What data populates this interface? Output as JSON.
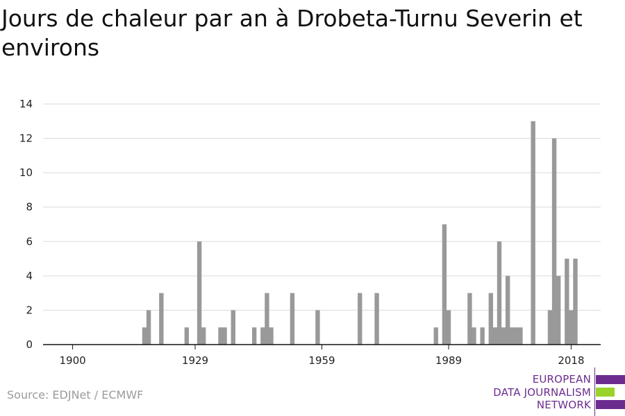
{
  "chart_data": {
    "type": "bar",
    "title": "Jours de chaleur par an à Drobeta-Turnu Severin et environs",
    "xlabel": "",
    "ylabel": "",
    "xlim": [
      1893,
      2025
    ],
    "ylim": [
      0,
      14
    ],
    "y_ticks": [
      0,
      2,
      4,
      6,
      8,
      10,
      12,
      14
    ],
    "x_ticks": [
      1900,
      1929,
      1959,
      1989,
      2018
    ],
    "grid": true,
    "bar_color": "#999999",
    "data": [
      {
        "year": 1917,
        "value": 1
      },
      {
        "year": 1918,
        "value": 2
      },
      {
        "year": 1921,
        "value": 3
      },
      {
        "year": 1927,
        "value": 1
      },
      {
        "year": 1930,
        "value": 6
      },
      {
        "year": 1931,
        "value": 1
      },
      {
        "year": 1935,
        "value": 1
      },
      {
        "year": 1936,
        "value": 1
      },
      {
        "year": 1938,
        "value": 2
      },
      {
        "year": 1943,
        "value": 1
      },
      {
        "year": 1945,
        "value": 1
      },
      {
        "year": 1946,
        "value": 3
      },
      {
        "year": 1947,
        "value": 1
      },
      {
        "year": 1952,
        "value": 3
      },
      {
        "year": 1958,
        "value": 2
      },
      {
        "year": 1968,
        "value": 3
      },
      {
        "year": 1972,
        "value": 3
      },
      {
        "year": 1986,
        "value": 1
      },
      {
        "year": 1988,
        "value": 7
      },
      {
        "year": 1989,
        "value": 2
      },
      {
        "year": 1994,
        "value": 3
      },
      {
        "year": 1995,
        "value": 1
      },
      {
        "year": 1997,
        "value": 1
      },
      {
        "year": 1999,
        "value": 3
      },
      {
        "year": 2000,
        "value": 1
      },
      {
        "year": 2001,
        "value": 6
      },
      {
        "year": 2002,
        "value": 1
      },
      {
        "year": 2003,
        "value": 4
      },
      {
        "year": 2004,
        "value": 1
      },
      {
        "year": 2005,
        "value": 1
      },
      {
        "year": 2006,
        "value": 1
      },
      {
        "year": 2009,
        "value": 13
      },
      {
        "year": 2013,
        "value": 2
      },
      {
        "year": 2014,
        "value": 12
      },
      {
        "year": 2015,
        "value": 4
      },
      {
        "year": 2017,
        "value": 5
      },
      {
        "year": 2018,
        "value": 2
      },
      {
        "year": 2019,
        "value": 5
      }
    ]
  },
  "footer": {
    "source": "Source: EDJNet / ECMWF",
    "logo_lines": [
      "EUROPEAN",
      "DATA JOURNALISM",
      "NETWORK"
    ]
  }
}
